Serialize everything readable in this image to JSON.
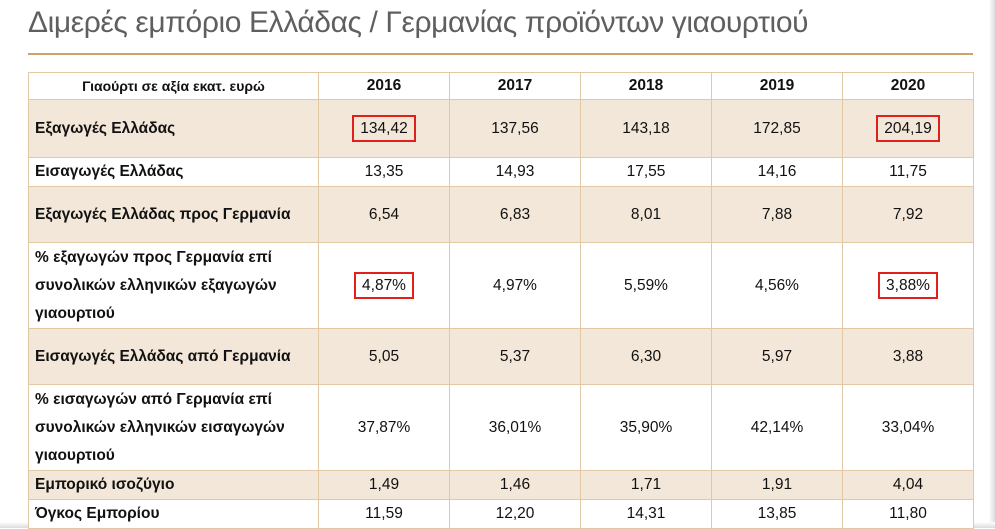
{
  "title": "Διμερές εμπόριο Ελλάδας / Γερμανίας προϊόντων γιαουρτιού",
  "table": {
    "header_label": "Γιαούρτι σε αξία εκατ. ευρώ",
    "years": [
      "2016",
      "2017",
      "2018",
      "2019",
      "2020"
    ],
    "rows": [
      {
        "label": "Εξαγωγές Ελλάδας",
        "values": [
          "134,42",
          "137,56",
          "143,18",
          "172,85",
          "204,19"
        ]
      },
      {
        "label": "Εισαγωγές Ελλάδας",
        "values": [
          "13,35",
          "14,93",
          "17,55",
          "14,16",
          "11,75"
        ]
      },
      {
        "label": "Εξαγωγές Ελλάδας προς Γερμανία",
        "values": [
          "6,54",
          "6,83",
          "8,01",
          "7,88",
          "7,92"
        ]
      },
      {
        "label": "% εξαγωγών προς Γερμανία επί συνολικών ελληνικών εξαγωγών γιαουρτιού",
        "values": [
          "4,87%",
          "4,97%",
          "5,59%",
          "4,56%",
          "3,88%"
        ]
      },
      {
        "label": "Εισαγωγές Ελλάδας από Γερμανία",
        "values": [
          "5,05",
          "5,37",
          "6,30",
          "5,97",
          "3,88"
        ]
      },
      {
        "label": "% εισαγωγών από Γερμανία επί συνολικών ελληνικών εισαγωγών γιαουρτιού",
        "values": [
          "37,87%",
          "36,01%",
          "35,90%",
          "42,14%",
          "33,04%"
        ]
      },
      {
        "label": "Εμπορικό ισοζύγιο",
        "values": [
          "1,49",
          "1,46",
          "1,71",
          "1,91",
          "4,04"
        ]
      },
      {
        "label": "Όγκος Εμπορίου",
        "values": [
          "11,59",
          "12,20",
          "14,31",
          "13,85",
          "11,80"
        ]
      }
    ]
  },
  "highlight_color": "#e0201b",
  "accent_color": "#c9a56a",
  "row_shade_color": "#f2e7d8"
}
